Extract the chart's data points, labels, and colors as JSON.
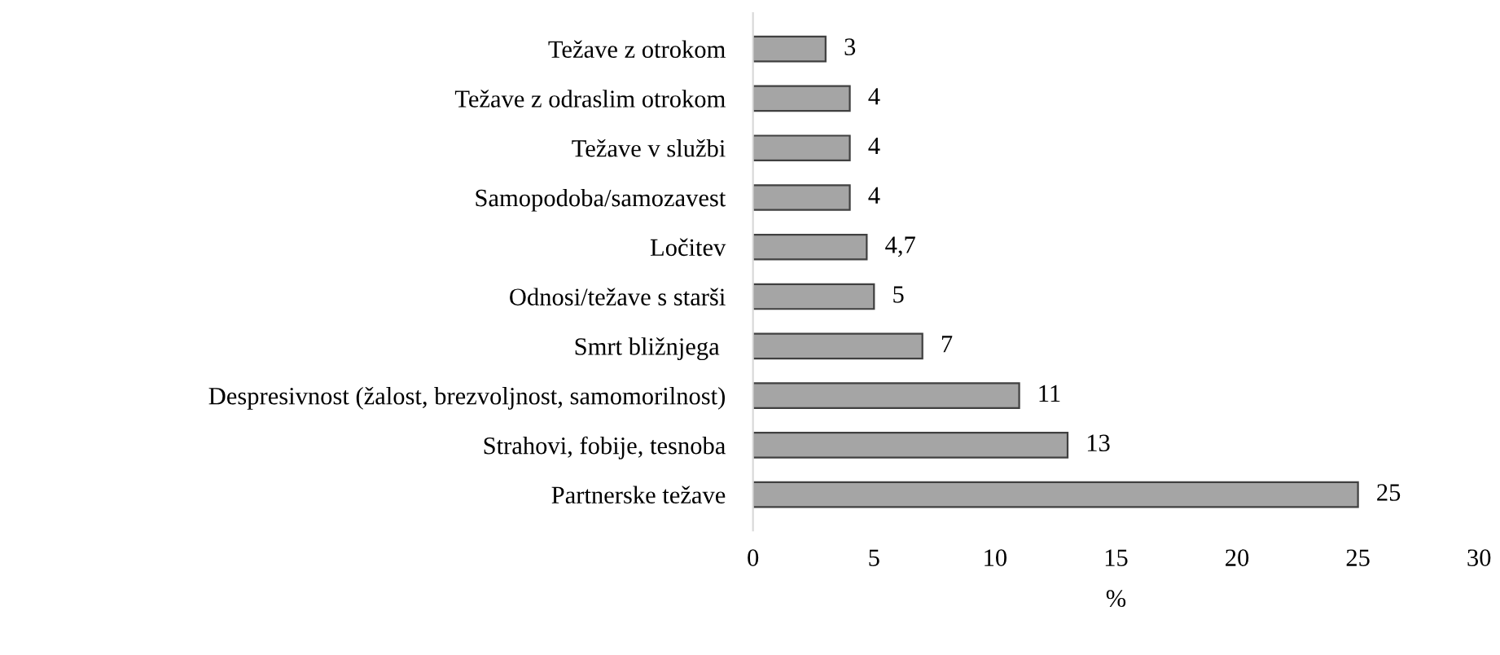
{
  "chart_data": {
    "type": "bar",
    "orientation": "horizontal",
    "xlabel": "%",
    "categories": [
      "Težave z otrokom",
      "Težave z odraslim otrokom",
      "Težave v službi",
      "Samopodoba/samozavest",
      "Ločitev",
      "Odnosi/težave s starši",
      "Smrt bližnjega ",
      "Despresivnost (žalost, brezvoljnost, samomorilnost)",
      "Strahovi, fobije, tesnoba",
      "Partnerske težave"
    ],
    "values": [
      3,
      4,
      4,
      4,
      4.7,
      5,
      7,
      11,
      13,
      25
    ],
    "value_labels": [
      "3",
      "4",
      "4",
      "4",
      "4,7",
      "5",
      "7",
      "11",
      "13",
      "25"
    ],
    "color": "#a5a5a5",
    "xlim": [
      0,
      30
    ],
    "xticks": [
      0,
      5,
      10,
      15,
      20,
      25,
      30
    ],
    "grid": false,
    "legend": false
  }
}
